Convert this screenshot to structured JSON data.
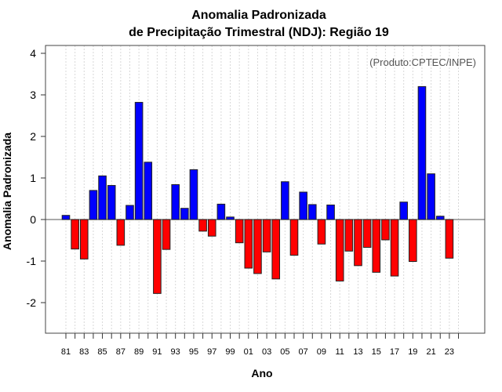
{
  "chart_data": {
    "type": "bar",
    "title": [
      "Anomalia Padronizada",
      "de Precipitação Trimestral (NDJ): Região 19"
    ],
    "annotation": "(Produto:CPTEC/INPE)",
    "xlabel": "Ano",
    "ylabel": "Anomalia Padronizada",
    "ylim": [
      -2.2,
      4.2
    ],
    "yticks": [
      -2,
      -1,
      0,
      1,
      2,
      3,
      4
    ],
    "xtick_labels": [
      "81",
      "83",
      "85",
      "87",
      "89",
      "91",
      "93",
      "95",
      "97",
      "99",
      "01",
      "03",
      "05",
      "07",
      "09",
      "11",
      "13",
      "15",
      "17",
      "19",
      "21",
      "23"
    ],
    "categories": [
      1981,
      1982,
      1983,
      1984,
      1985,
      1986,
      1987,
      1988,
      1989,
      1990,
      1991,
      1992,
      1993,
      1994,
      1995,
      1996,
      1997,
      1998,
      1999,
      2000,
      2001,
      2002,
      2003,
      2004,
      2005,
      2006,
      2007,
      2008,
      2009,
      2010,
      2011,
      2012,
      2013,
      2014,
      2015,
      2016,
      2017,
      2018,
      2019,
      2020,
      2021,
      2022,
      2023
    ],
    "values": [
      0.1,
      -0.71,
      -0.95,
      0.7,
      1.05,
      0.82,
      -0.62,
      0.34,
      2.82,
      1.38,
      -1.78,
      -0.72,
      0.84,
      0.27,
      1.2,
      -0.28,
      -0.4,
      0.37,
      0.06,
      -0.56,
      -1.17,
      -1.3,
      -0.78,
      -1.43,
      0.91,
      -0.86,
      0.66,
      0.36,
      -0.59,
      0.35,
      -1.48,
      -0.76,
      -1.11,
      -0.67,
      -1.27,
      -0.49,
      -1.36,
      0.42,
      -1.01,
      3.2,
      1.1,
      0.08,
      -0.93
    ],
    "colors": {
      "positive": "#0000ff",
      "negative": "#ff0000"
    },
    "grid": "vertical dotted"
  }
}
